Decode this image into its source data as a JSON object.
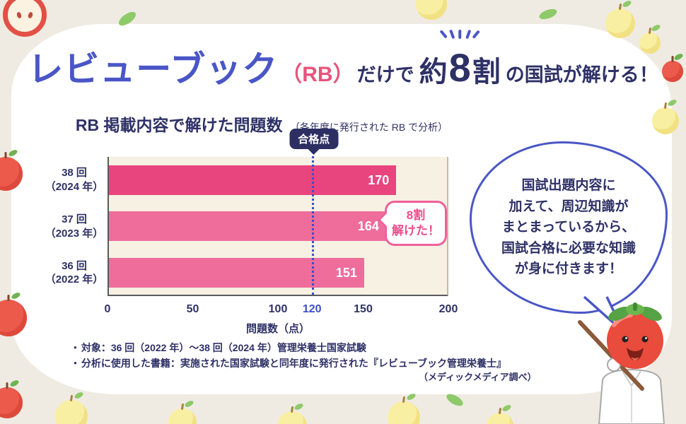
{
  "page": {
    "bg_color": "#efebe2",
    "accent_blue": "#4a56c6",
    "accent_pink": "#e8537c",
    "navy": "#2e3166"
  },
  "header": {
    "brand": "レビューブック",
    "brand_abbr": "（RB）",
    "mid": "だけで",
    "highlight_pre": "約",
    "highlight_num": "8",
    "highlight_post": "割",
    "tail": "の国試が解ける！"
  },
  "chart": {
    "title": "RB 掲載内容で解けた問題数",
    "subtitle": "（各年度に発行された RB で分析）",
    "pass_badge": "合格点",
    "pass_tick": "120",
    "rows": [
      {
        "label_line1": "38 回",
        "label_line2": "（2024 年）",
        "value": "170"
      },
      {
        "label_line1": "37 回",
        "label_line2": "（2023 年）",
        "value": "164"
      },
      {
        "label_line1": "36 回",
        "label_line2": "（2022 年）",
        "value": "151"
      }
    ],
    "x_ticks": [
      "0",
      "50",
      "100",
      "150",
      "200"
    ],
    "xlabel": "問題数（点）",
    "callout_line1": "8割",
    "callout_line2": "解けた！"
  },
  "chart_data": {
    "type": "bar",
    "orientation": "horizontal",
    "title": "RB 掲載内容で解けた問題数（各年度に発行された RB で分析）",
    "categories": [
      "38回（2024年）",
      "37回（2023年）",
      "36回（2022年）"
    ],
    "values": [
      170,
      164,
      151
    ],
    "xlabel": "問題数（点）",
    "xlim": [
      0,
      200
    ],
    "x_tick_values": [
      0,
      50,
      100,
      150,
      200
    ],
    "reference_line": {
      "label": "合格点",
      "value": 120
    },
    "bar_colors": [
      "#e8457f",
      "#ee6d9b",
      "#ee6d9b"
    ],
    "annotation": "8割解けた！",
    "legend": "none",
    "grid": "off"
  },
  "speech_bubble": {
    "lines": [
      "国試出題内容に",
      "加えて、周辺知識が",
      "まとまっているから、",
      "国試合格に必要な知識",
      "が身に付きます！"
    ]
  },
  "notes": {
    "bullet": "●",
    "line1": "対象：36 回（2022 年）～38 回（2024 年）管理栄養士国家試験",
    "line2": "分析に使用した書籍：実施された国家試験と同年度に発行された『レビューブック管理栄養士』",
    "credit": "（メディックメディア調べ）"
  }
}
